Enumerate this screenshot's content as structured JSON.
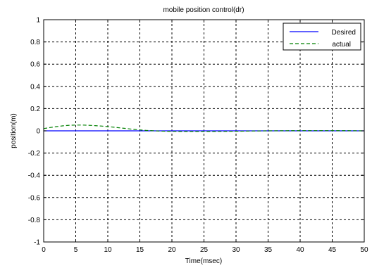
{
  "chart_data": {
    "type": "line",
    "title": "mobile position control(dr)",
    "xlabel": "Time(msec)",
    "ylabel": "position(m)",
    "xlim": [
      0,
      50
    ],
    "ylim": [
      -1,
      1
    ],
    "xticks": [
      0,
      5,
      10,
      15,
      20,
      25,
      30,
      35,
      40,
      45,
      50
    ],
    "yticks": [
      1,
      0.8,
      0.6,
      0.4,
      0.2,
      0,
      -0.2,
      -0.4,
      -0.6,
      -0.8,
      -1
    ],
    "ytick_labels": [
      "1",
      "0.8",
      "0.6",
      "0.4",
      "0.2",
      "0",
      "-0.2",
      "-0.4",
      "-0.6",
      "-0.8",
      "-1"
    ],
    "grid": true,
    "legend_position": "top-right",
    "series": [
      {
        "name": "Desired",
        "color": "#0000ff",
        "style": "solid",
        "x": [
          0,
          50
        ],
        "y": [
          0,
          0
        ]
      },
      {
        "name": "actual",
        "color": "#008000",
        "style": "dashed",
        "x": [
          0,
          1,
          2,
          3,
          4,
          5,
          6,
          7,
          8,
          9,
          10,
          11,
          12,
          13,
          14,
          15,
          16,
          17,
          18,
          19,
          20,
          22,
          25,
          28,
          30,
          32,
          35,
          38,
          40,
          42,
          45,
          48,
          50
        ],
        "y": [
          0.02,
          0.03,
          0.038,
          0.045,
          0.05,
          0.052,
          0.052,
          0.05,
          0.047,
          0.043,
          0.038,
          0.032,
          0.026,
          0.02,
          0.013,
          0.008,
          0.004,
          0.001,
          -0.002,
          -0.004,
          -0.005,
          -0.006,
          -0.006,
          -0.005,
          -0.004,
          -0.002,
          0,
          0.001,
          0.002,
          0.002,
          0.002,
          0.001,
          0
        ]
      }
    ]
  }
}
